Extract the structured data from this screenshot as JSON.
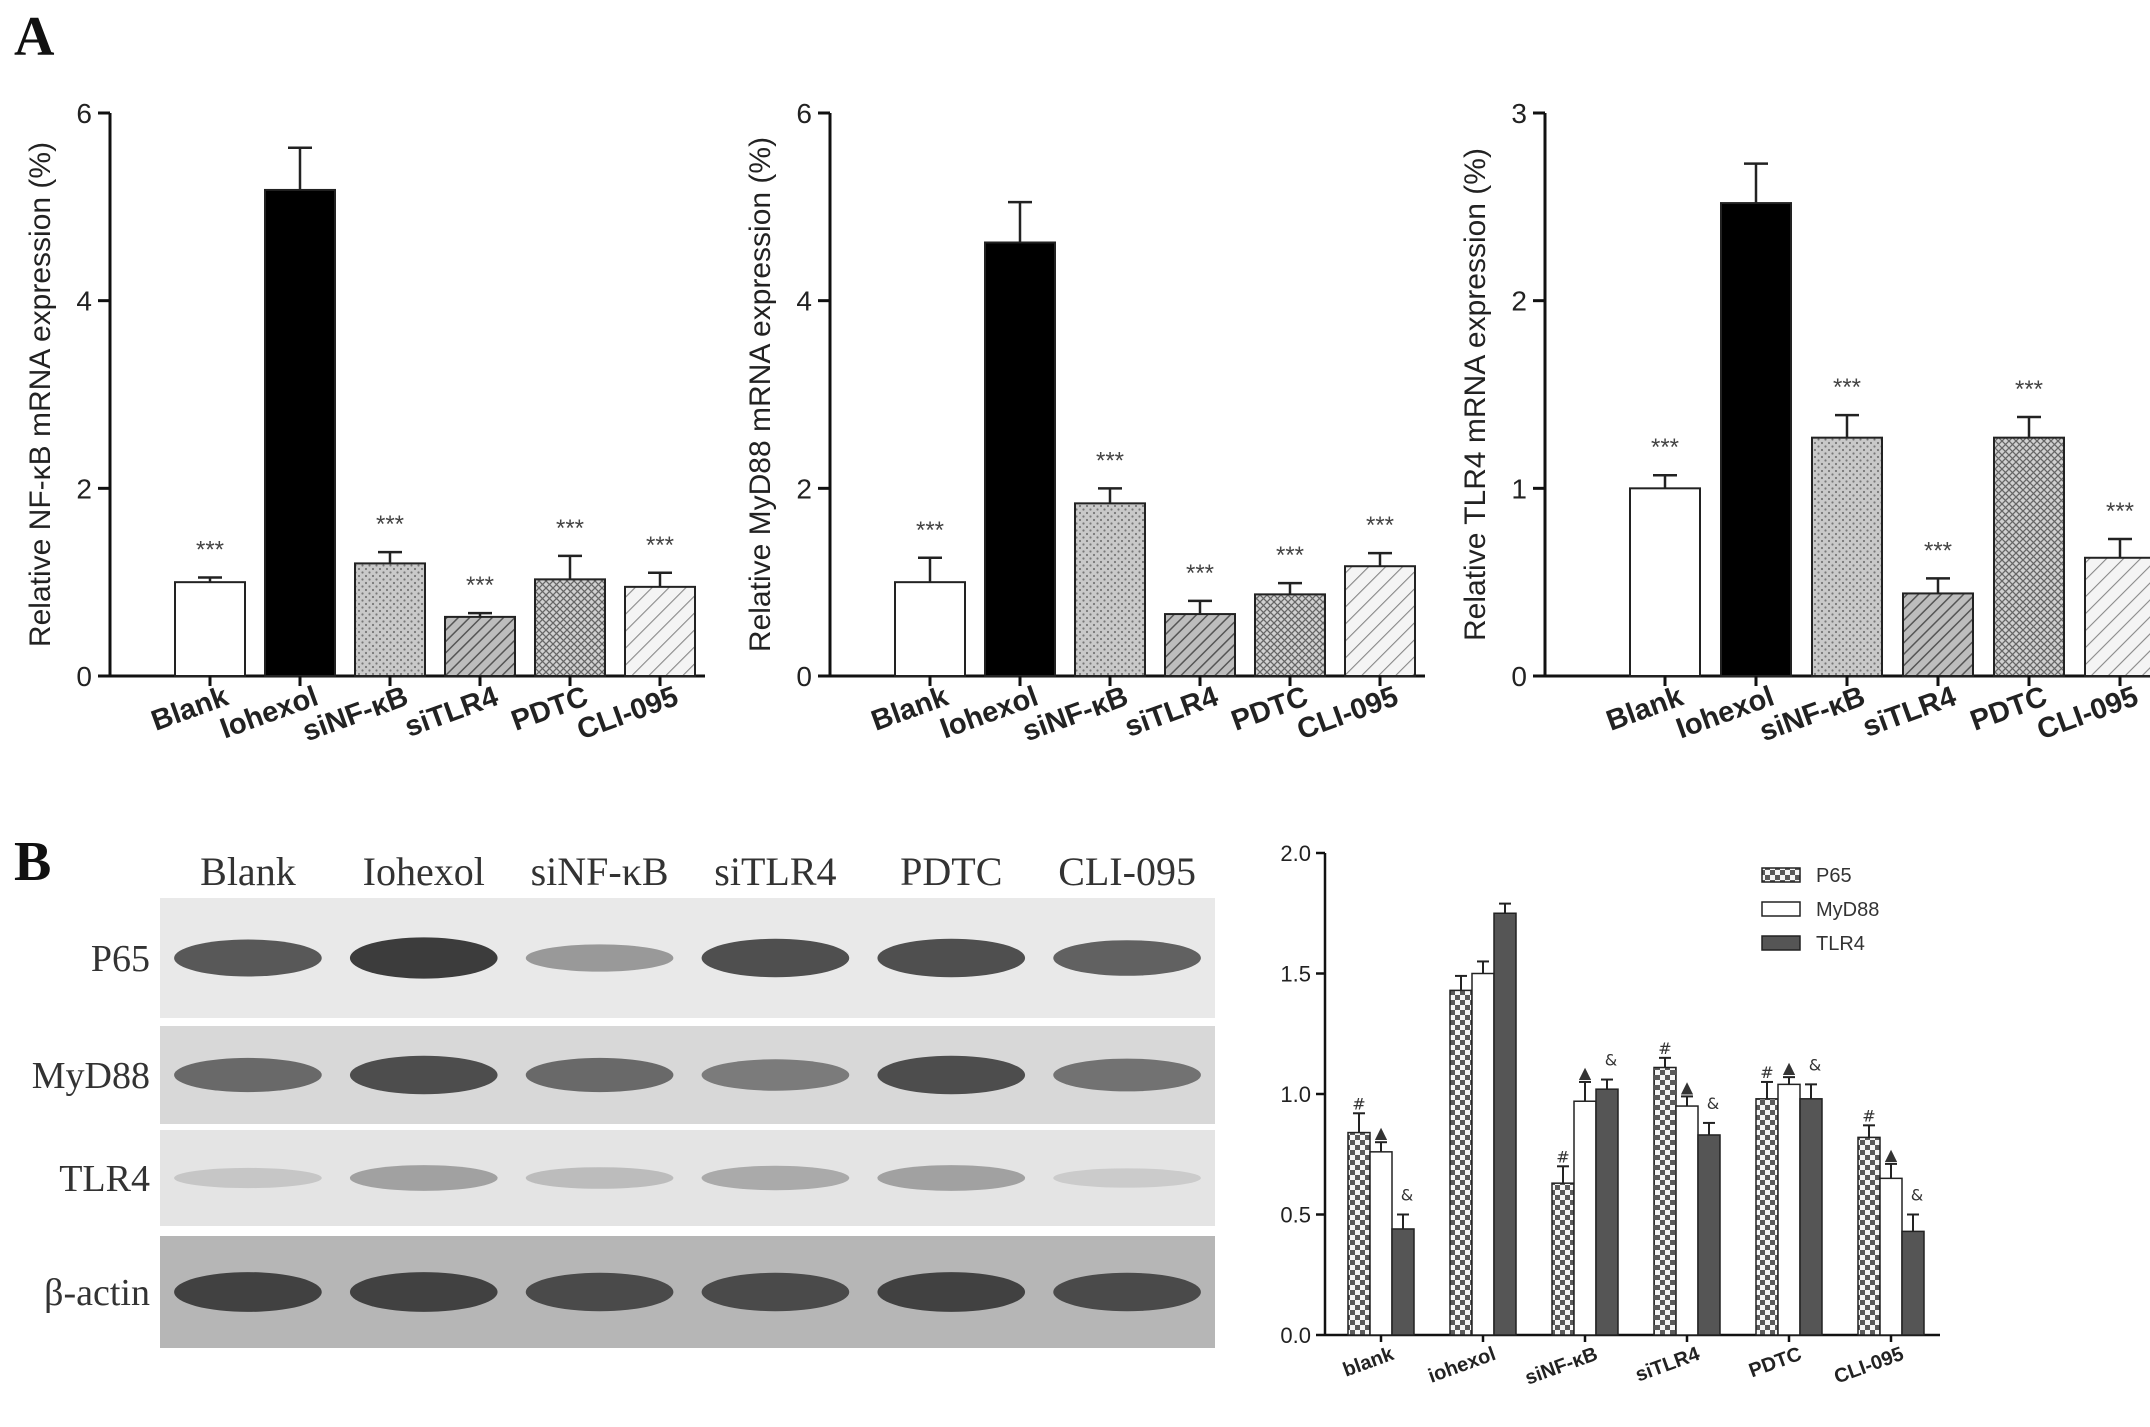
{
  "panels": {
    "a_label": "A",
    "b_label": "B"
  },
  "chart_data": [
    {
      "type": "bar",
      "panel": "A",
      "ylabel": "Relative NF-κB mRNA expression (%)",
      "ylim": [
        0,
        6
      ],
      "yticks": [
        "0",
        "2",
        "4",
        "6"
      ],
      "categories": [
        "Blank",
        "Iohexol",
        "siNF-κB",
        "siTLR4",
        "PDTC",
        "CLI-095"
      ],
      "values": [
        1.0,
        5.18,
        1.2,
        0.63,
        1.03,
        0.95
      ],
      "errors": [
        0.05,
        0.45,
        0.12,
        0.04,
        0.25,
        0.15
      ],
      "significance": [
        "***",
        "",
        "***",
        "***",
        "***",
        "***"
      ],
      "fills": [
        "white",
        "black",
        "dots",
        "diag-dense",
        "cross",
        "diag-light"
      ]
    },
    {
      "type": "bar",
      "panel": "A",
      "ylabel": "Relative MyD88 mRNA expression (%)",
      "ylim": [
        0,
        6
      ],
      "yticks": [
        "0",
        "2",
        "4",
        "6"
      ],
      "categories": [
        "Blank",
        "Iohexol",
        "siNF-κB",
        "siTLR4",
        "PDTC",
        "CLI-095"
      ],
      "values": [
        1.0,
        4.62,
        1.84,
        0.66,
        0.87,
        1.17
      ],
      "errors": [
        0.26,
        0.43,
        0.16,
        0.14,
        0.12,
        0.14
      ],
      "significance": [
        "***",
        "",
        "***",
        "***",
        "***",
        "***"
      ],
      "fills": [
        "white",
        "black",
        "dots",
        "diag-dense",
        "cross",
        "diag-light"
      ]
    },
    {
      "type": "bar",
      "panel": "A",
      "ylabel": "Relative TLR4 mRNA expression (%)",
      "ylim": [
        0,
        3
      ],
      "yticks": [
        "0",
        "1",
        "2",
        "3"
      ],
      "categories": [
        "Blank",
        "Iohexol",
        "siNF-κB",
        "siTLR4",
        "PDTC",
        "CLI-095"
      ],
      "values": [
        1.0,
        2.52,
        1.27,
        0.44,
        1.27,
        0.63
      ],
      "errors": [
        0.07,
        0.21,
        0.12,
        0.08,
        0.11,
        0.1
      ],
      "significance": [
        "***",
        "",
        "***",
        "***",
        "***",
        "***"
      ],
      "fills": [
        "white",
        "black",
        "dots",
        "diag-dense",
        "cross",
        "diag-light"
      ]
    },
    {
      "type": "bar",
      "panel": "B",
      "ylim": [
        0,
        2.0
      ],
      "yticks": [
        "0.0",
        "0.5",
        "1.0",
        "1.5",
        "2.0"
      ],
      "categories": [
        "blank",
        "iohexol",
        "siNF-κB",
        "siTLR4",
        "PDTC",
        "CLI-095"
      ],
      "legend_position": "top-right",
      "series": [
        {
          "name": "P65",
          "fill": "checker",
          "values": [
            0.84,
            1.43,
            0.63,
            1.11,
            0.98,
            0.82
          ],
          "errors": [
            0.08,
            0.06,
            0.07,
            0.04,
            0.07,
            0.05
          ],
          "marks": [
            "#",
            "",
            "#",
            "#",
            "#",
            "#"
          ]
        },
        {
          "name": "MyD88",
          "fill": "white",
          "values": [
            0.76,
            1.5,
            0.97,
            0.95,
            1.04,
            0.65
          ],
          "errors": [
            0.04,
            0.05,
            0.08,
            0.04,
            0.03,
            0.06
          ],
          "marks": [
            "▲",
            "",
            "▲",
            "▲",
            "▲",
            "▲"
          ]
        },
        {
          "name": "TLR4",
          "fill": "dark",
          "values": [
            0.44,
            1.75,
            1.02,
            0.83,
            0.98,
            0.43
          ],
          "errors": [
            0.06,
            0.04,
            0.04,
            0.05,
            0.06,
            0.07
          ],
          "marks": [
            "&",
            "",
            "&",
            "&",
            "&",
            "&"
          ]
        }
      ]
    }
  ],
  "western_blot": {
    "columns": [
      "Blank",
      "Iohexol",
      "siNF-κB",
      "siTLR4",
      "PDTC",
      "CLI-095"
    ],
    "rows": [
      {
        "label": "P65",
        "bg": "#e9e9e9",
        "intensity": [
          0.75,
          0.9,
          0.4,
          0.8,
          0.8,
          0.7
        ]
      },
      {
        "label": "MyD88",
        "bg": "#d8d8d8",
        "intensity": [
          0.65,
          0.8,
          0.65,
          0.55,
          0.8,
          0.6
        ]
      },
      {
        "label": "TLR4",
        "bg": "#e4e4e4",
        "intensity": [
          0.15,
          0.35,
          0.2,
          0.3,
          0.35,
          0.12
        ]
      },
      {
        "label": "β-actin",
        "bg": "#b6b6b6",
        "intensity": [
          0.85,
          0.85,
          0.8,
          0.8,
          0.85,
          0.8
        ]
      }
    ]
  }
}
